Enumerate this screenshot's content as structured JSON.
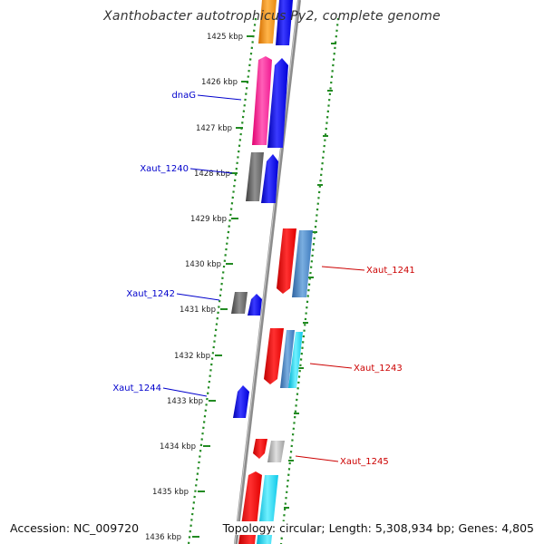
{
  "title": "Xanthobacter autotrophicus Py2, complete genome",
  "footer": {
    "accession": "Accession: NC_009720",
    "topology": "Topology: circular; Length: 5,308,934 bp; Genes: 4,805"
  },
  "ticks": [
    {
      "label": "1425 kbp"
    },
    {
      "label": "1426 kbp"
    },
    {
      "label": "1427 kbp"
    },
    {
      "label": "1428 kbp"
    },
    {
      "label": "1429 kbp"
    },
    {
      "label": "1430 kbp"
    },
    {
      "label": "1431 kbp"
    },
    {
      "label": "1432 kbp"
    },
    {
      "label": "1433 kbp"
    },
    {
      "label": "1434 kbp"
    },
    {
      "label": "1435 kbp"
    },
    {
      "label": "1436 kbp"
    }
  ],
  "gene_labels": [
    {
      "text": "dnaG",
      "strand": "forward"
    },
    {
      "text": "Xaut_1240",
      "strand": "forward"
    },
    {
      "text": "Xaut_1241",
      "strand": "reverse"
    },
    {
      "text": "Xaut_1242",
      "strand": "forward"
    },
    {
      "text": "Xaut_1243",
      "strand": "reverse"
    },
    {
      "text": "Xaut_1244",
      "strand": "forward"
    },
    {
      "text": "Xaut_1245",
      "strand": "reverse"
    }
  ],
  "colors": {
    "forward_label": "#0000cc",
    "reverse_label": "#cc0000",
    "tick_mark": "#228b22",
    "backbone": "#808080"
  },
  "features": [
    {
      "name": "orange-feature",
      "color": "#ff9a1a"
    },
    {
      "name": "blue-feature",
      "color": "#1a1aff"
    },
    {
      "name": "pink-feature",
      "color": "#ff2fa0"
    },
    {
      "name": "red-feature",
      "color": "#ff1a1a"
    },
    {
      "name": "steelblue-feature",
      "color": "#4a86c8"
    },
    {
      "name": "cyan-feature",
      "color": "#1ad7f0"
    },
    {
      "name": "gray-feature",
      "color": "#707070"
    },
    {
      "name": "lightgray-feature",
      "color": "#b8b8b8"
    }
  ]
}
